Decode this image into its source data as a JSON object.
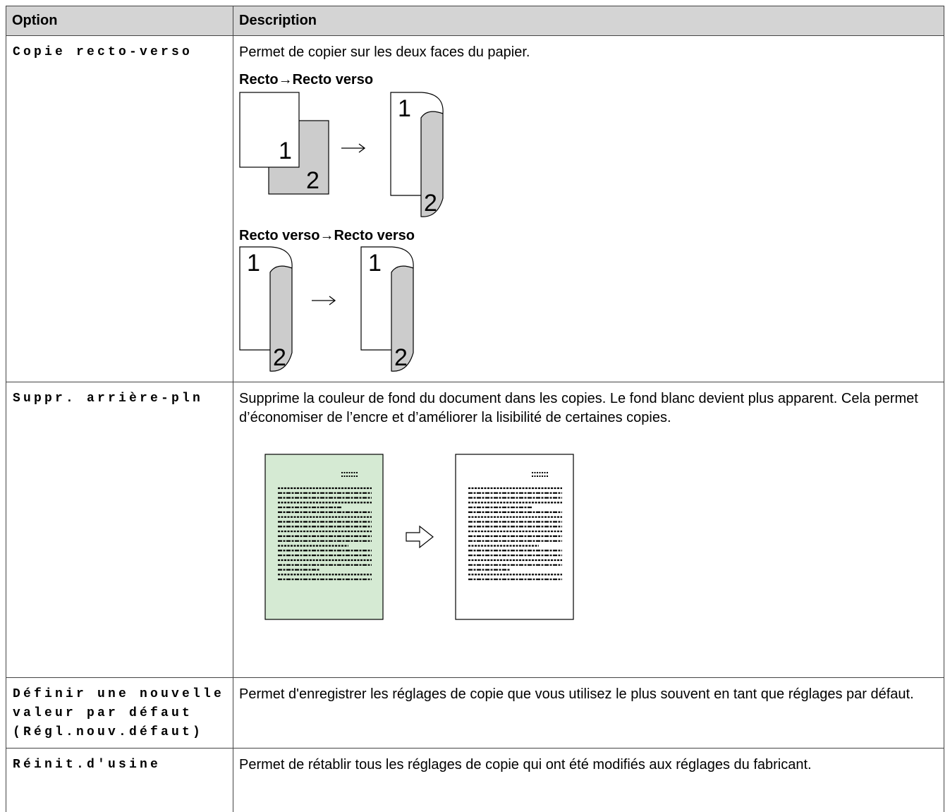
{
  "table": {
    "header": [
      "Option",
      "Description"
    ],
    "rows": [
      {
        "option": "Copie recto-verso",
        "description": "Permet de copier sur les deux faces du papier.",
        "figures": [
          "Recto→Recto verso",
          "Recto verso→Recto verso"
        ]
      },
      {
        "option": "Suppr. arrière-pln",
        "description": "Supprime la couleur de fond du document dans les copies. Le fond blanc devient plus apparent. Cela permet d’économiser de l’encre et d’améliorer la lisibilité de certaines copies."
      },
      {
        "option": "Définir une nouvelle valeur par défaut (Régl.nouv.défaut)",
        "description": "Permet d'enregistrer les réglages de copie que vous utilisez le plus souvent en tant que réglages par défaut."
      },
      {
        "option": "Réinit.d'usine",
        "description": "Permet de rétablir tous les réglages de copie qui ont été modifiés aux réglages du fabricant."
      }
    ]
  },
  "page_numbers": [
    "1",
    "2"
  ]
}
